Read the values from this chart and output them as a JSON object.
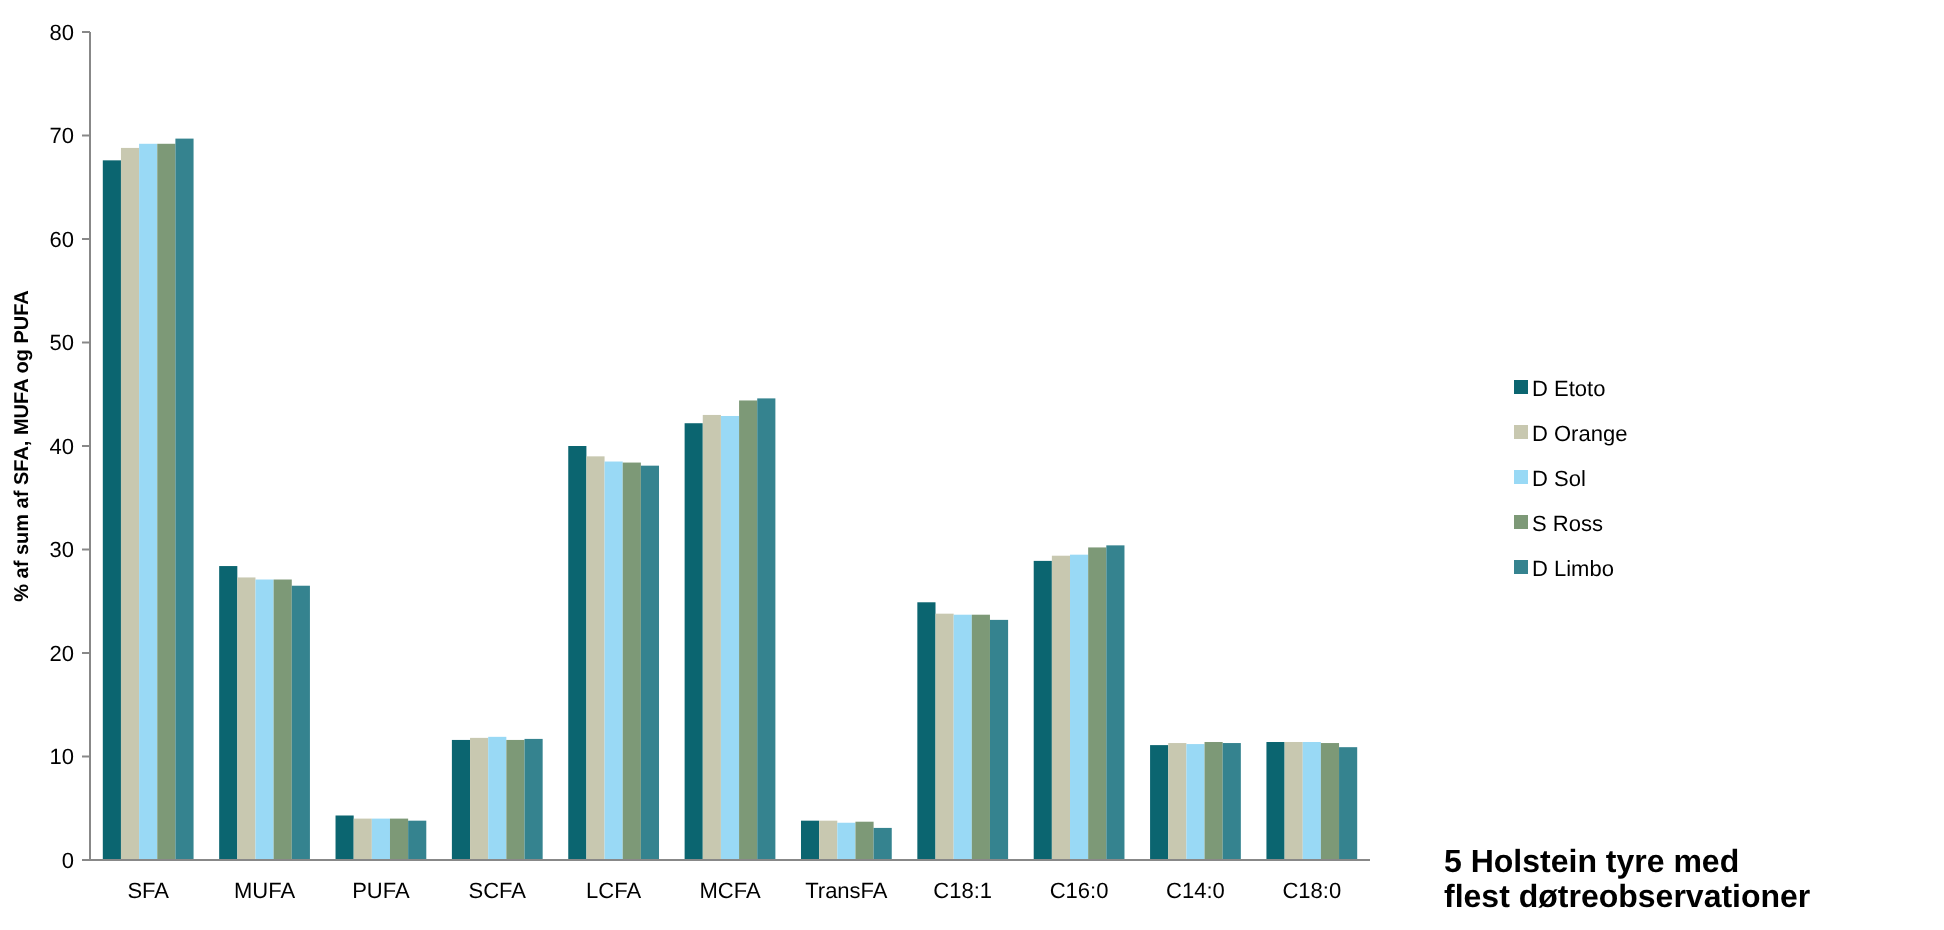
{
  "chart_data": {
    "type": "bar",
    "title": "5 Holstein tyre med flest døtreobservationer",
    "ylabel": "% af sum af SFA, MUFA og PUFA",
    "categories": [
      "SFA",
      "MUFA",
      "PUFA",
      "SCFA",
      "LCFA",
      "MCFA",
      "TransFA",
      "C18:1",
      "C16:0",
      "C14:0",
      "C18:0"
    ],
    "ylim": [
      0,
      80
    ],
    "yticks": [
      0,
      10,
      20,
      30,
      40,
      50,
      60,
      70,
      80
    ],
    "grid": false,
    "legend": "right",
    "series": [
      {
        "name": "D Etoto",
        "color": "#0b6570",
        "values": [
          67.6,
          28.4,
          4.3,
          11.6,
          40.0,
          42.2,
          3.8,
          24.9,
          28.9,
          11.1,
          11.4
        ]
      },
      {
        "name": "D Orange",
        "color": "#c8c8b0",
        "values": [
          68.8,
          27.3,
          4.0,
          11.8,
          39.0,
          43.0,
          3.8,
          23.8,
          29.4,
          11.3,
          11.4
        ]
      },
      {
        "name": "D Sol",
        "color": "#99d9f5",
        "values": [
          69.2,
          27.1,
          4.0,
          11.9,
          38.5,
          42.9,
          3.6,
          23.7,
          29.5,
          11.2,
          11.4
        ]
      },
      {
        "name": "S Ross",
        "color": "#7d9977",
        "values": [
          69.2,
          27.1,
          4.0,
          11.6,
          38.4,
          44.4,
          3.7,
          23.7,
          30.2,
          11.4,
          11.3
        ]
      },
      {
        "name": "D Limbo",
        "color": "#35838f",
        "values": [
          69.7,
          26.5,
          3.8,
          11.7,
          38.1,
          44.6,
          3.1,
          23.2,
          30.4,
          11.3,
          10.9
        ]
      }
    ]
  }
}
